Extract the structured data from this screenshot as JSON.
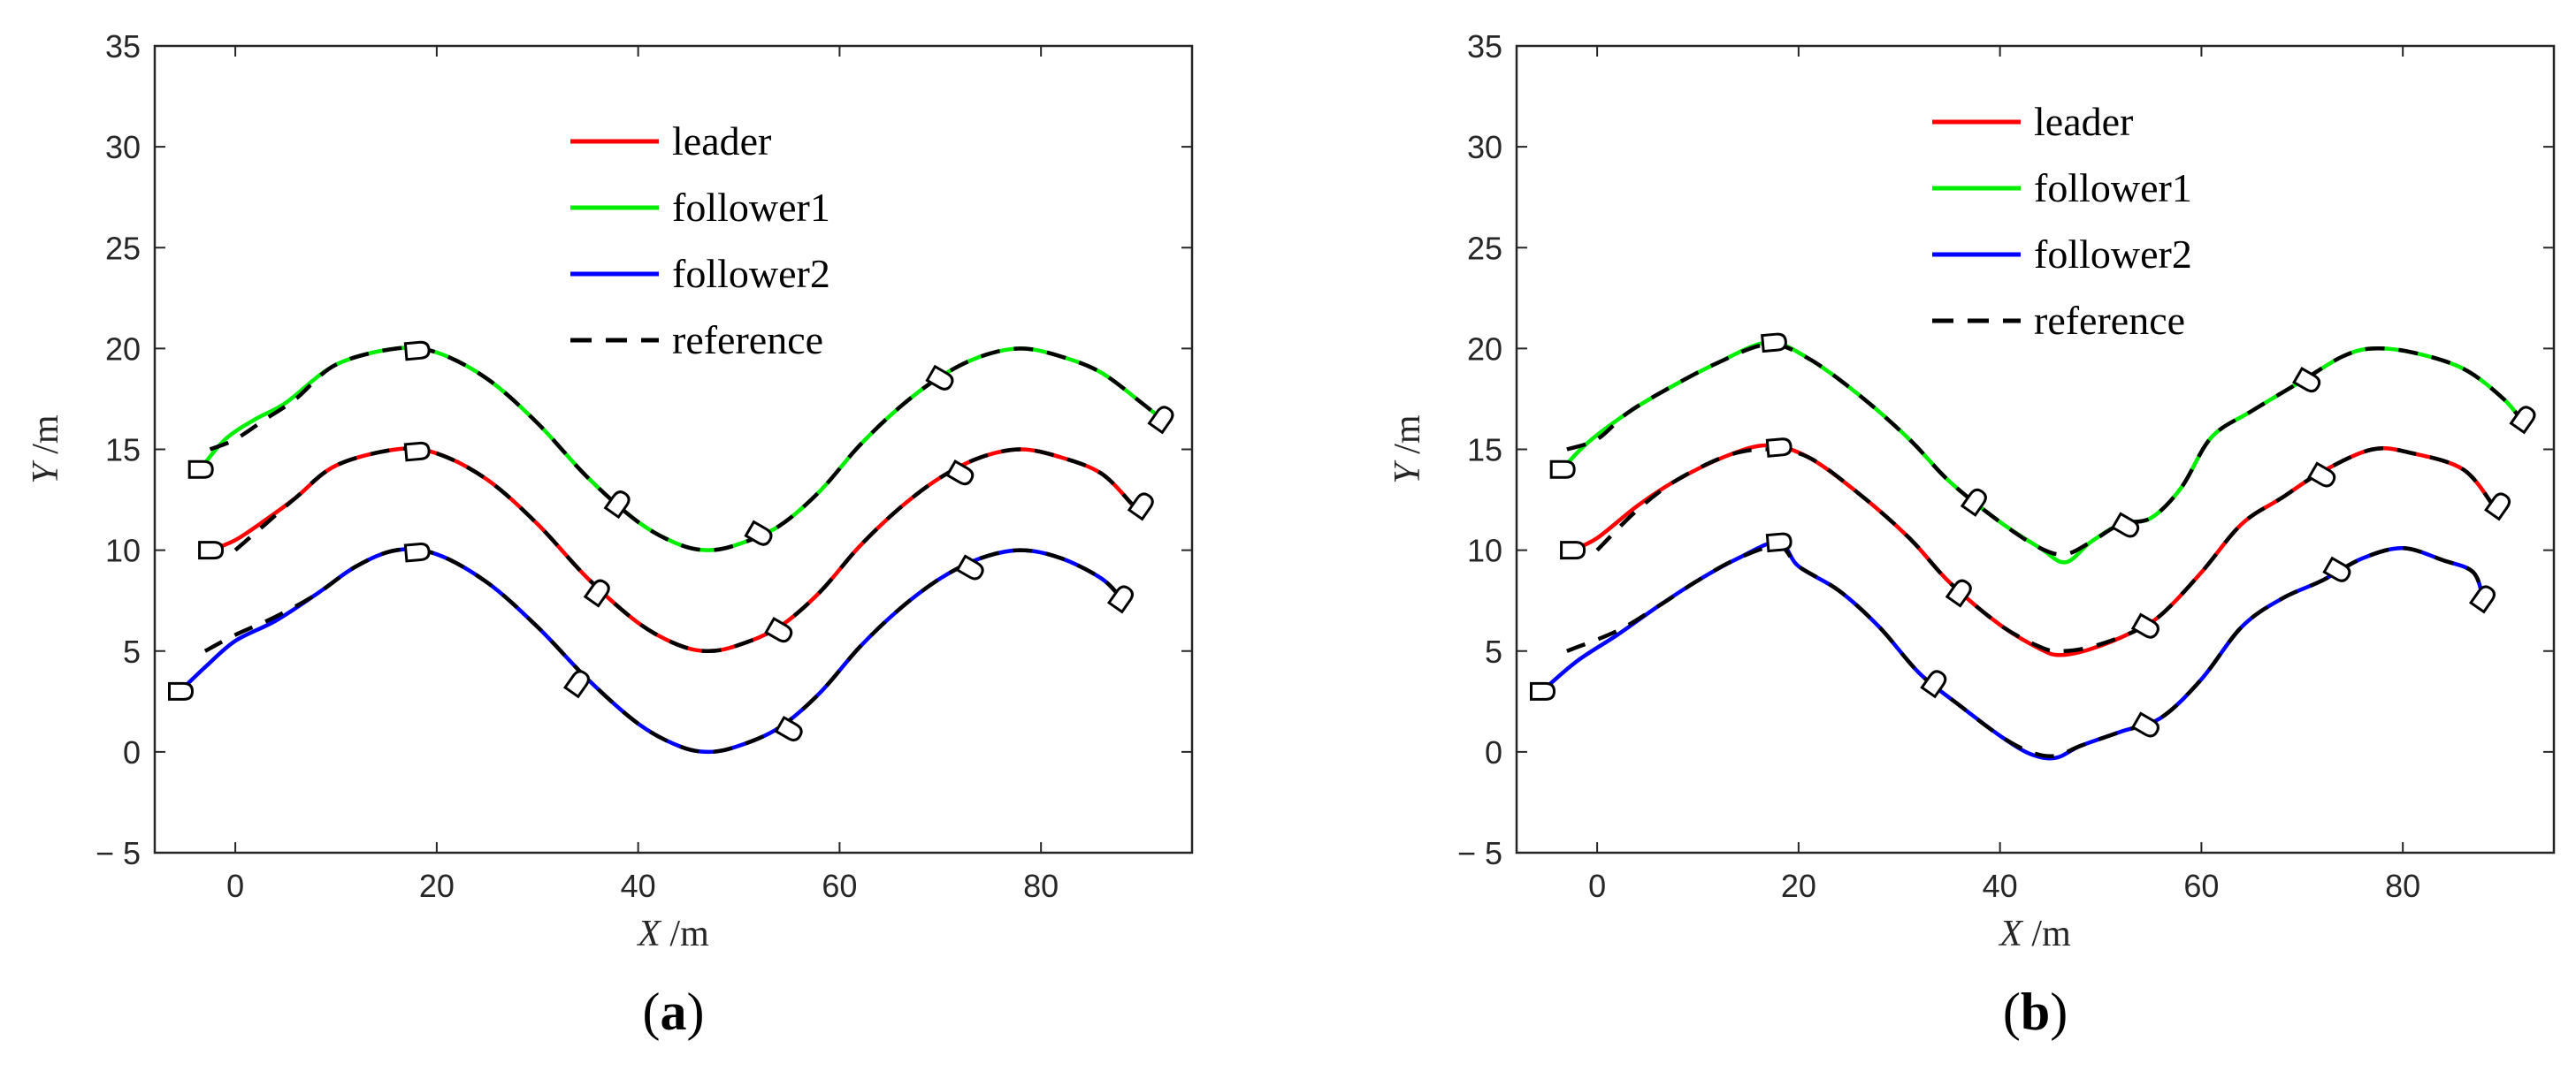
{
  "chart_data": [
    {
      "type": "line",
      "panel_label": "(a)",
      "panel_letter": "a",
      "xlabel_symbol": "X",
      "xlabel_unit": " /m",
      "ylabel_symbol": "Y",
      "ylabel_unit": " /m",
      "xlim": [
        -8,
        95
      ],
      "ylim": [
        -5,
        35
      ],
      "xticks": [
        0,
        20,
        40,
        60,
        80
      ],
      "yticks": [
        -5,
        0,
        5,
        10,
        15,
        20,
        25,
        30,
        35
      ],
      "xtick_labels": [
        "0",
        "20",
        "40",
        "60",
        "80"
      ],
      "ytick_labels": [
        "− 5",
        "0",
        "5",
        "10",
        "15",
        "20",
        "25",
        "30",
        "35"
      ],
      "legend": {
        "location": "top-center",
        "entries": [
          {
            "label": "leader",
            "color": "#ff0000",
            "style": "solid"
          },
          {
            "label": "follower1",
            "color": "#00ee00",
            "style": "solid"
          },
          {
            "label": "follower2",
            "color": "#0000ff",
            "style": "solid"
          },
          {
            "label": "reference",
            "color": "#000000",
            "style": "dashed"
          }
        ]
      },
      "series": [
        {
          "name": "follower1",
          "color": "#00ee00",
          "x": [
            -3.5,
            -1,
            2,
            5,
            10,
            16,
            20,
            25,
            30,
            35,
            40,
            44,
            47,
            50,
            54,
            58,
            62,
            66,
            70,
            74,
            78,
            82,
            86,
            90,
            92
          ],
          "y": [
            14,
            15.5,
            16.5,
            17.3,
            19.2,
            20,
            19.8,
            18.5,
            16.3,
            13.6,
            11.4,
            10.3,
            10,
            10.3,
            11.2,
            12.9,
            15.2,
            17.1,
            18.6,
            19.6,
            20,
            19.6,
            18.8,
            17.3,
            16.5
          ]
        },
        {
          "name": "leader",
          "color": "#ff0000",
          "x": [
            -2.5,
            0,
            3,
            6,
            10,
            16,
            20,
            25,
            30,
            35,
            40,
            44,
            47,
            50,
            54,
            58,
            62,
            66,
            70,
            74,
            78,
            82,
            86,
            89
          ],
          "y": [
            10,
            10.5,
            11.5,
            12.6,
            14.2,
            15,
            14.8,
            13.5,
            11.3,
            8.6,
            6.4,
            5.3,
            5,
            5.3,
            6.2,
            7.9,
            10.2,
            12.1,
            13.6,
            14.6,
            15,
            14.6,
            13.8,
            12.3
          ]
        },
        {
          "name": "follower2",
          "color": "#0000ff",
          "x": [
            -5.5,
            -3,
            0,
            4,
            8,
            12,
            16,
            20,
            25,
            30,
            35,
            40,
            44,
            47,
            50,
            54,
            58,
            62,
            66,
            70,
            74,
            78,
            82,
            86,
            88
          ],
          "y": [
            3,
            4.2,
            5.5,
            6.5,
            7.8,
            9.2,
            10,
            9.8,
            8.4,
            6.2,
            3.6,
            1.4,
            0.3,
            0,
            0.3,
            1.2,
            2.9,
            5.2,
            7.1,
            8.6,
            9.6,
            10,
            9.6,
            8.6,
            7.6
          ]
        }
      ],
      "reference": [
        {
          "name": "reference",
          "x": [
            -2.5,
            0,
            3,
            6,
            10,
            16,
            20,
            25,
            30,
            35,
            40,
            44,
            47,
            50,
            54,
            58,
            62,
            66,
            70,
            74,
            78,
            82,
            86,
            90,
            92
          ],
          "y": [
            15,
            15.5,
            16.5,
            17.5,
            19.2,
            20,
            19.8,
            18.5,
            16.3,
            13.6,
            11.4,
            10.3,
            10,
            10.3,
            11.2,
            12.9,
            15.2,
            17.1,
            18.6,
            19.6,
            20,
            19.6,
            18.8,
            17.3,
            16.5
          ]
        },
        {
          "name": "reference",
          "x": [
            0,
            3,
            6,
            10,
            16,
            20,
            25,
            30,
            35,
            40,
            44,
            47,
            50,
            54,
            58,
            62,
            66,
            70,
            74,
            78,
            82,
            86,
            89
          ],
          "y": [
            10,
            11.3,
            12.6,
            14.2,
            15,
            14.8,
            13.5,
            11.3,
            8.6,
            6.4,
            5.3,
            5,
            5.3,
            6.2,
            7.9,
            10.2,
            12.1,
            13.6,
            14.6,
            15,
            14.6,
            13.8,
            12.3
          ]
        },
        {
          "name": "reference",
          "x": [
            -3,
            0,
            4,
            8,
            12,
            16,
            20,
            25,
            30,
            35,
            40,
            44,
            47,
            50,
            54,
            58,
            62,
            66,
            70,
            74,
            78,
            82,
            86,
            88
          ],
          "y": [
            5,
            5.8,
            6.7,
            7.8,
            9.2,
            10,
            9.8,
            8.4,
            6.2,
            3.6,
            1.4,
            0.3,
            0,
            0.3,
            1.2,
            2.9,
            5.2,
            7.1,
            8.6,
            9.6,
            10,
            9.6,
            8.6,
            7.6
          ]
        }
      ],
      "ship_markers": [
        {
          "x": -3.5,
          "y": 14,
          "heading": 0
        },
        {
          "x": 18,
          "y": 19.9,
          "heading": -5
        },
        {
          "x": 38,
          "y": 12.3,
          "heading": -55
        },
        {
          "x": 52,
          "y": 10.8,
          "heading": 30
        },
        {
          "x": 70,
          "y": 18.5,
          "heading": 30
        },
        {
          "x": 92,
          "y": 16.5,
          "heading": -55
        },
        {
          "x": -2.5,
          "y": 10,
          "heading": 0
        },
        {
          "x": 18,
          "y": 14.9,
          "heading": -5
        },
        {
          "x": 36,
          "y": 7.9,
          "heading": -55
        },
        {
          "x": 54,
          "y": 6,
          "heading": 30
        },
        {
          "x": 72,
          "y": 13.8,
          "heading": 30
        },
        {
          "x": 90,
          "y": 12.2,
          "heading": -55
        },
        {
          "x": -5.5,
          "y": 3,
          "heading": 0
        },
        {
          "x": 18,
          "y": 9.9,
          "heading": -5
        },
        {
          "x": 34,
          "y": 3.4,
          "heading": -55
        },
        {
          "x": 55,
          "y": 1.1,
          "heading": 30
        },
        {
          "x": 73,
          "y": 9.1,
          "heading": 30
        },
        {
          "x": 88,
          "y": 7.6,
          "heading": -55
        }
      ]
    },
    {
      "type": "line",
      "panel_label": "(b)",
      "panel_letter": "b",
      "xlabel_symbol": "X",
      "xlabel_unit": " /m",
      "ylabel_symbol": "Y",
      "ylabel_unit": " /m",
      "xlim": [
        -8,
        95
      ],
      "ylim": [
        -5,
        35
      ],
      "xticks": [
        0,
        20,
        40,
        60,
        80
      ],
      "yticks": [
        -5,
        0,
        5,
        10,
        15,
        20,
        25,
        30,
        35
      ],
      "xtick_labels": [
        "0",
        "20",
        "40",
        "60",
        "80"
      ],
      "ytick_labels": [
        "− 5",
        "0",
        "5",
        "10",
        "15",
        "20",
        "25",
        "30",
        "35"
      ],
      "legend": {
        "location": "top-center",
        "entries": [
          {
            "label": "leader",
            "color": "#ff0000",
            "style": "solid"
          },
          {
            "label": "follower1",
            "color": "#00ee00",
            "style": "solid"
          },
          {
            "label": "follower2",
            "color": "#0000ff",
            "style": "solid"
          },
          {
            "label": "reference",
            "color": "#000000",
            "style": "dashed"
          }
        ]
      },
      "series": [
        {
          "name": "follower1",
          "color": "#00ee00",
          "x": [
            -3.5,
            -1,
            3,
            7,
            12,
            17,
            21,
            26,
            31,
            35,
            40,
            44,
            46.5,
            49,
            52,
            55,
            58,
            61,
            65,
            70,
            74,
            77,
            81,
            86,
            90,
            92
          ],
          "y": [
            14,
            15.3,
            16.8,
            18,
            19.3,
            20.3,
            19.5,
            17.7,
            15.5,
            13.4,
            11.4,
            10.1,
            9.4,
            10.4,
            11.3,
            11.6,
            13.1,
            15.6,
            16.9,
            18.4,
            19.6,
            20,
            19.8,
            19,
            17.5,
            16.3
          ]
        },
        {
          "name": "leader",
          "color": "#ff0000",
          "x": [
            -2.5,
            0,
            4,
            8,
            13,
            17,
            21,
            26,
            31,
            35,
            40,
            44,
            46,
            49,
            53,
            56,
            60,
            64,
            68,
            72,
            77,
            81,
            86,
            89
          ],
          "y": [
            10,
            10.6,
            12.2,
            13.5,
            14.7,
            15.2,
            14.6,
            12.8,
            10.6,
            8.4,
            6.3,
            5.1,
            4.8,
            5.1,
            5.9,
            6.8,
            8.9,
            11.3,
            12.6,
            13.9,
            15,
            14.8,
            14,
            12.2
          ]
        },
        {
          "name": "follower2",
          "color": "#0000ff",
          "x": [
            -5.5,
            -2,
            2,
            6,
            10,
            14,
            18,
            20,
            24,
            28,
            32,
            36,
            40,
            43,
            45.5,
            48,
            52,
            56,
            60,
            64,
            68,
            72,
            76,
            80,
            84,
            87,
            88
          ],
          "y": [
            3,
            4.5,
            5.8,
            7.2,
            8.5,
            9.6,
            10.4,
            9.2,
            8,
            6.2,
            3.9,
            2.3,
            0.8,
            -0.1,
            -0.3,
            0.3,
            1,
            1.7,
            3.6,
            6.2,
            7.6,
            8.5,
            9.6,
            10.1,
            9.5,
            8.9,
            7.5
          ]
        }
      ],
      "reference": [
        {
          "name": "reference",
          "x": [
            -3,
            0,
            3,
            7,
            12,
            17,
            21,
            26,
            31,
            35,
            40,
            44,
            46.5,
            49,
            52,
            55,
            58,
            61,
            65,
            70,
            74,
            77,
            81,
            86,
            90,
            92
          ],
          "y": [
            15,
            15.5,
            16.8,
            18,
            19.3,
            20.2,
            19.5,
            17.7,
            15.5,
            13.4,
            11.4,
            10.1,
            9.8,
            10.4,
            11.3,
            11.6,
            13.1,
            15.6,
            16.9,
            18.4,
            19.6,
            20,
            19.8,
            19,
            17.5,
            16.3
          ]
        },
        {
          "name": "reference",
          "x": [
            0,
            4,
            8,
            13,
            17,
            21,
            26,
            31,
            35,
            40,
            44,
            46,
            49,
            53,
            56,
            60,
            64,
            68,
            72,
            77,
            81,
            86,
            89
          ],
          "y": [
            10,
            12,
            13.5,
            14.7,
            15,
            14.6,
            12.8,
            10.6,
            8.4,
            6.3,
            5.2,
            5,
            5.2,
            5.9,
            6.8,
            8.9,
            11.3,
            12.6,
            13.9,
            15,
            14.8,
            14,
            12.2
          ]
        },
        {
          "name": "reference",
          "x": [
            -3,
            2,
            6,
            10,
            14,
            18,
            20,
            24,
            28,
            32,
            36,
            40,
            43,
            45.5,
            48,
            52,
            56,
            60,
            64,
            68,
            72,
            76,
            80,
            84,
            87,
            88
          ],
          "y": [
            5,
            6,
            7.2,
            8.5,
            9.6,
            10.2,
            9.2,
            8,
            6.2,
            3.9,
            2.3,
            0.8,
            0,
            -0.2,
            0.3,
            1,
            1.7,
            3.6,
            6.2,
            7.6,
            8.5,
            9.6,
            10.1,
            9.5,
            8.9,
            7.5
          ]
        }
      ],
      "ship_markers": [
        {
          "x": -3.5,
          "y": 14,
          "heading": 0
        },
        {
          "x": 17.5,
          "y": 20.3,
          "heading": -5
        },
        {
          "x": 37.5,
          "y": 12.4,
          "heading": -55
        },
        {
          "x": 52.5,
          "y": 11.2,
          "heading": 30
        },
        {
          "x": 70.5,
          "y": 18.4,
          "heading": 30
        },
        {
          "x": 92,
          "y": 16.5,
          "heading": -55
        },
        {
          "x": -2.5,
          "y": 10,
          "heading": 0
        },
        {
          "x": 18,
          "y": 15.1,
          "heading": -5
        },
        {
          "x": 36,
          "y": 7.9,
          "heading": -55
        },
        {
          "x": 54.5,
          "y": 6.2,
          "heading": 30
        },
        {
          "x": 72,
          "y": 13.7,
          "heading": 30
        },
        {
          "x": 89.5,
          "y": 12.2,
          "heading": -55
        },
        {
          "x": -5.5,
          "y": 3,
          "heading": 0
        },
        {
          "x": 18,
          "y": 10.4,
          "heading": -5
        },
        {
          "x": 33.5,
          "y": 3.4,
          "heading": -55
        },
        {
          "x": 54.5,
          "y": 1.3,
          "heading": 30
        },
        {
          "x": 73.5,
          "y": 9,
          "heading": 30
        },
        {
          "x": 88,
          "y": 7.6,
          "heading": -55
        }
      ]
    }
  ]
}
